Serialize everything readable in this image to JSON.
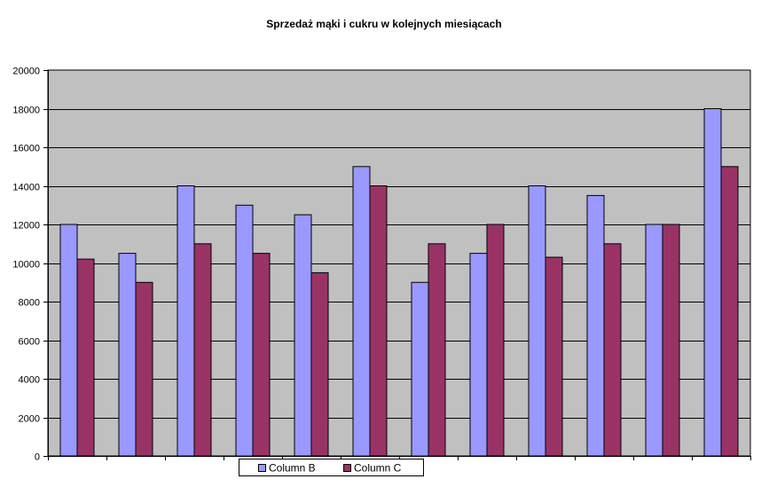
{
  "chart_data": {
    "type": "bar",
    "title": "Sprzedaż mąki i cukru w kolejnych miesiącach",
    "xlabel": "",
    "ylabel": "",
    "ylim": [
      0,
      20000
    ],
    "y_ticks": [
      "0",
      "2000",
      "4000",
      "6000",
      "8000",
      "10000",
      "12000",
      "14000",
      "16000",
      "18000",
      "20000"
    ],
    "grid": true,
    "legend_position": "bottom",
    "categories": [
      "",
      "",
      "",
      "",
      "",
      "",
      "",
      "",
      "",
      "",
      "",
      ""
    ],
    "series": [
      {
        "name": "Column B",
        "color": "#9999ff",
        "values": [
          12000,
          10500,
          14000,
          13000,
          12500,
          15000,
          9000,
          10500,
          14000,
          13500,
          12000,
          18000
        ]
      },
      {
        "name": "Column C",
        "color": "#993366",
        "values": [
          10200,
          9000,
          11000,
          10500,
          9500,
          14000,
          11000,
          12000,
          10300,
          11000,
          12000,
          15000
        ]
      }
    ],
    "plot_background": "#c0c0c0"
  }
}
